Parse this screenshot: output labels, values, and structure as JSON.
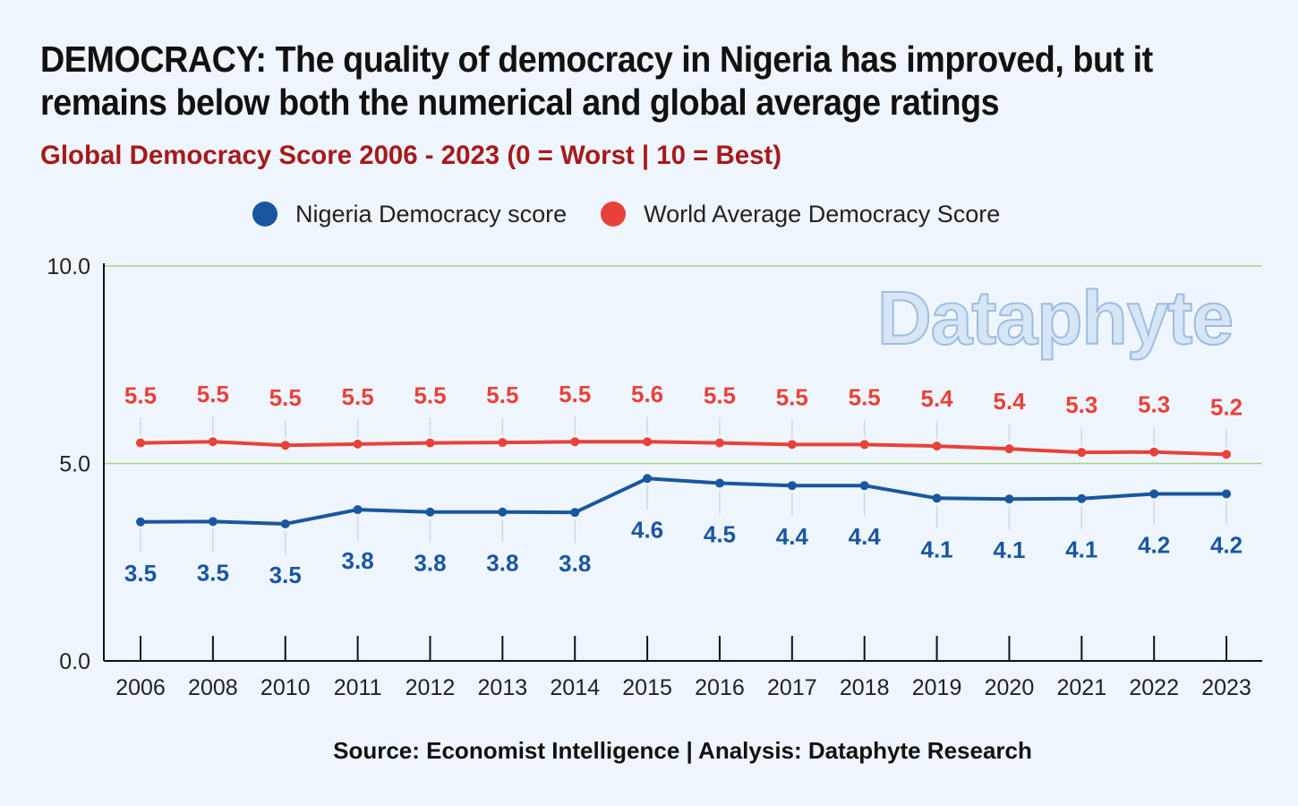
{
  "title": "DEMOCRACY: The quality of democracy in Nigeria has improved, but it remains below both the numerical and global average ratings",
  "subtitle": "Global Democracy Score 2006 - 2023 (0 = Worst | 10 = Best)",
  "source": "Source: Economist Intelligence | Analysis: Dataphyte Research",
  "watermark": "Dataphyte",
  "chart_data": {
    "type": "line",
    "categories": [
      "2006",
      "2008",
      "2010",
      "2011",
      "2012",
      "2013",
      "2014",
      "2015",
      "2016",
      "2017",
      "2018",
      "2019",
      "2020",
      "2021",
      "2022",
      "2023"
    ],
    "ylim": [
      0,
      10
    ],
    "yticks": [
      "0.0",
      "5.0",
      "10.0"
    ],
    "grid": true,
    "legend_position": "top",
    "series": [
      {
        "name": "Nigeria Democracy score",
        "color": "#1a56a0",
        "values": [
          3.52,
          3.53,
          3.47,
          3.83,
          3.77,
          3.77,
          3.76,
          4.62,
          4.5,
          4.44,
          4.44,
          4.12,
          4.1,
          4.11,
          4.23,
          4.23
        ],
        "labels": [
          "3.5",
          "3.5",
          "3.5",
          "3.8",
          "3.8",
          "3.8",
          "3.8",
          "4.6",
          "4.5",
          "4.4",
          "4.4",
          "4.1",
          "4.1",
          "4.1",
          "4.2",
          "4.2"
        ]
      },
      {
        "name": "World Average Democracy Score",
        "color": "#e8413a",
        "values": [
          5.52,
          5.55,
          5.46,
          5.49,
          5.52,
          5.53,
          5.55,
          5.55,
          5.52,
          5.48,
          5.48,
          5.44,
          5.37,
          5.28,
          5.29,
          5.23
        ],
        "labels": [
          "5.5",
          "5.5",
          "5.5",
          "5.5",
          "5.5",
          "5.5",
          "5.5",
          "5.6",
          "5.5",
          "5.5",
          "5.5",
          "5.4",
          "5.4",
          "5.3",
          "5.3",
          "5.2"
        ]
      }
    ]
  }
}
